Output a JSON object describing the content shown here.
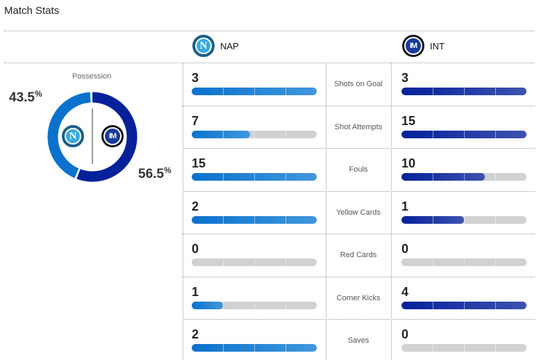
{
  "title": "Match Stats",
  "teams": {
    "home": {
      "abbr": "NAP",
      "logo_letter": "N",
      "color": "#0a72cc"
    },
    "away": {
      "abbr": "INT",
      "logo_letter": "IM",
      "color": "#04219a"
    }
  },
  "possession": {
    "label": "Possession",
    "home": 43.5,
    "away": 56.5,
    "home_text": "43.5",
    "away_text": "56.5",
    "unit": "%"
  },
  "stats": [
    {
      "label": "Shots on Goal",
      "home": 3,
      "away": 3
    },
    {
      "label": "Shot Attempts",
      "home": 7,
      "away": 15
    },
    {
      "label": "Fouls",
      "home": 15,
      "away": 10
    },
    {
      "label": "Yellow Cards",
      "home": 2,
      "away": 1
    },
    {
      "label": "Red Cards",
      "home": 0,
      "away": 0
    },
    {
      "label": "Corner Kicks",
      "home": 1,
      "away": 4
    },
    {
      "label": "Saves",
      "home": 2,
      "away": 0
    }
  ]
}
